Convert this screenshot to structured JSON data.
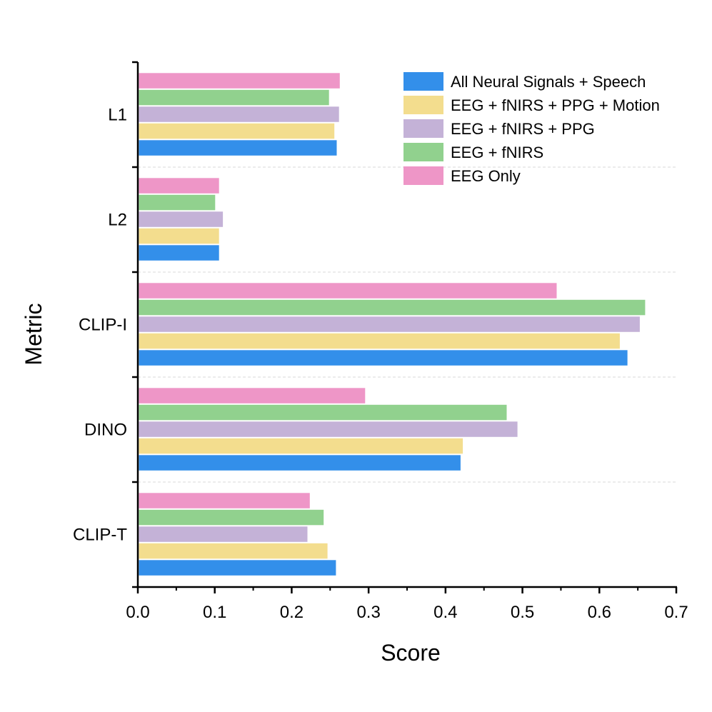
{
  "chart_data": {
    "type": "bar",
    "orientation": "horizontal",
    "title": "",
    "xlabel": "Score",
    "ylabel": "Metric",
    "xlim": [
      0.0,
      0.7
    ],
    "xticks": [
      "0.0",
      "0.1",
      "0.2",
      "0.3",
      "0.4",
      "0.5",
      "0.6",
      "0.7"
    ],
    "categories": [
      "L1",
      "L2",
      "CLIP-I",
      "DINO",
      "CLIP-T"
    ],
    "legend_position": "top-right",
    "grid": "dashed horizontal separators between categories",
    "series": [
      {
        "name": "All Neural Signals + Speech",
        "color": "#338fea",
        "values": [
          0.259,
          0.106,
          0.637,
          0.42,
          0.258
        ]
      },
      {
        "name": "EEG + fNIRS + PPG + Motion",
        "color": "#f3dd8e",
        "values": [
          0.256,
          0.106,
          0.627,
          0.423,
          0.247
        ]
      },
      {
        "name": "EEG + fNIRS + PPG",
        "color": "#c4b2d7",
        "values": [
          0.262,
          0.111,
          0.653,
          0.494,
          0.221
        ]
      },
      {
        "name": "EEG + fNIRS",
        "color": "#91d18e",
        "values": [
          0.249,
          0.101,
          0.66,
          0.48,
          0.242
        ]
      },
      {
        "name": "EEG Only",
        "color": "#ee96c7",
        "values": [
          0.263,
          0.106,
          0.545,
          0.296,
          0.224
        ]
      }
    ]
  }
}
